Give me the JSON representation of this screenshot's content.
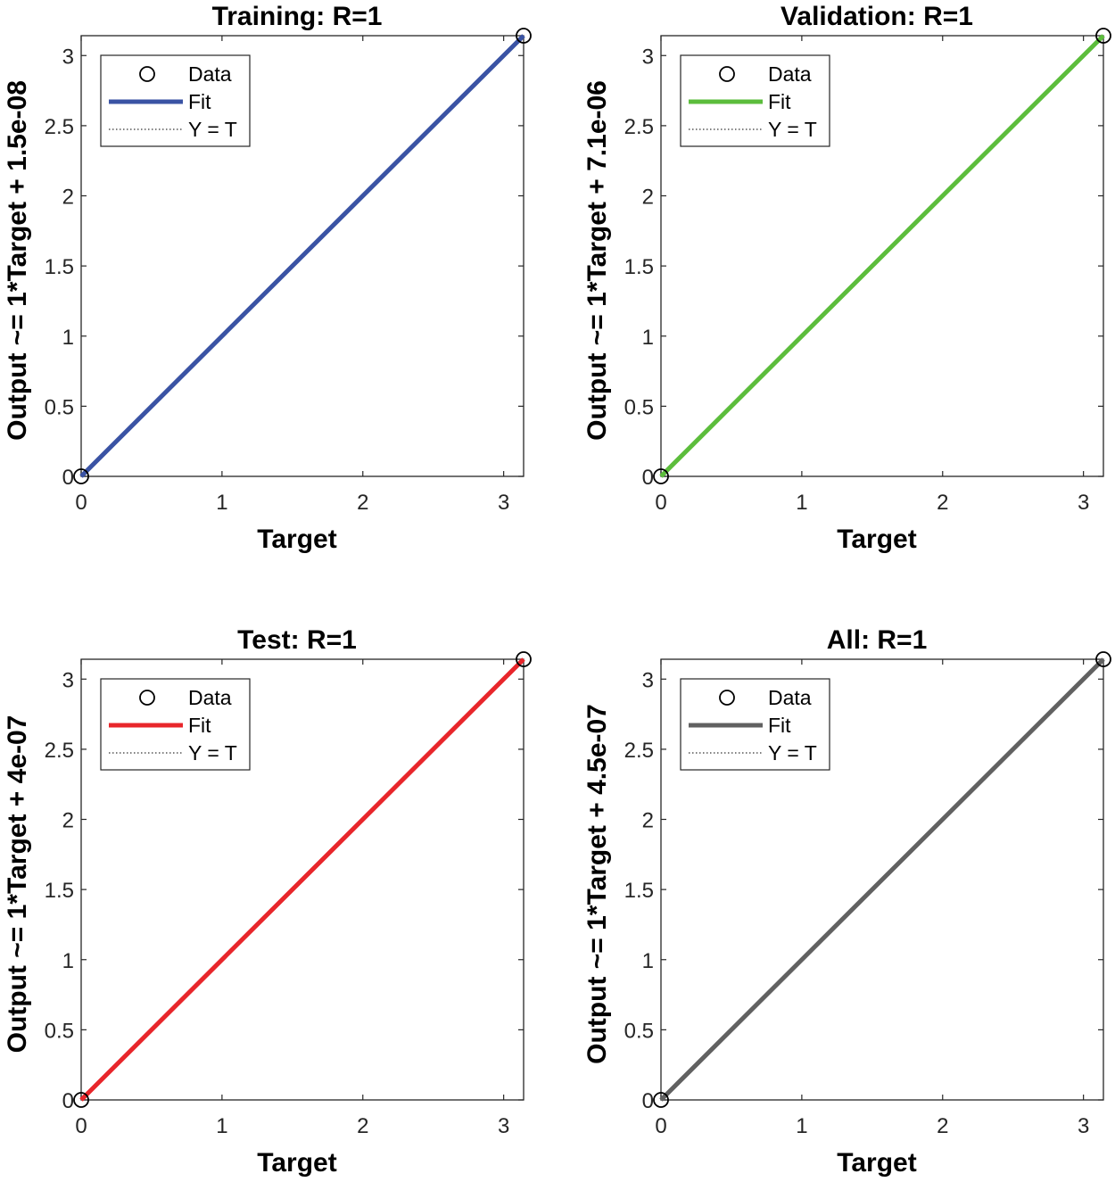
{
  "chart_data": [
    {
      "type": "scatter",
      "title": "Training: R=1",
      "xlabel": "Target",
      "ylabel": "Output ~= 1*Target + 1.5e-08",
      "xlim": [
        0,
        3.14159
      ],
      "ylim": [
        0,
        3.14159
      ],
      "xticks": [
        "0",
        "1",
        "2",
        "3"
      ],
      "yticks": [
        "0",
        "0.5",
        "1",
        "1.5",
        "2",
        "2.5",
        "3"
      ],
      "fit_color": "#3a53a4",
      "legend_position": "top-left",
      "legend": [
        "Data",
        "Fit",
        "Y = T"
      ],
      "series": [
        {
          "name": "Data",
          "x": [
            0,
            3.14159
          ],
          "y": [
            0,
            3.14159
          ]
        },
        {
          "name": "Fit",
          "x": [
            0,
            3.14159
          ],
          "y": [
            0,
            3.14159
          ]
        },
        {
          "name": "Y = T",
          "x": [
            0,
            3.14159
          ],
          "y": [
            0,
            3.14159
          ]
        }
      ]
    },
    {
      "type": "scatter",
      "title": "Validation: R=1",
      "xlabel": "Target",
      "ylabel": "Output ~= 1*Target + 7.1e-06",
      "xlim": [
        0,
        3.14159
      ],
      "ylim": [
        0,
        3.14159
      ],
      "xticks": [
        "0",
        "1",
        "2",
        "3"
      ],
      "yticks": [
        "0",
        "0.5",
        "1",
        "1.5",
        "2",
        "2.5",
        "3"
      ],
      "fit_color": "#5cbd3c",
      "legend_position": "top-left",
      "legend": [
        "Data",
        "Fit",
        "Y = T"
      ],
      "series": [
        {
          "name": "Data",
          "x": [
            0,
            3.14159
          ],
          "y": [
            0,
            3.14159
          ]
        },
        {
          "name": "Fit",
          "x": [
            0,
            3.14159
          ],
          "y": [
            0,
            3.14159
          ]
        },
        {
          "name": "Y = T",
          "x": [
            0,
            3.14159
          ],
          "y": [
            0,
            3.14159
          ]
        }
      ]
    },
    {
      "type": "scatter",
      "title": "Test: R=1",
      "xlabel": "Target",
      "ylabel": "Output ~= 1*Target + 4e-07",
      "xlim": [
        0,
        3.14159
      ],
      "ylim": [
        0,
        3.14159
      ],
      "xticks": [
        "0",
        "1",
        "2",
        "3"
      ],
      "yticks": [
        "0",
        "0.5",
        "1",
        "1.5",
        "2",
        "2.5",
        "3"
      ],
      "fit_color": "#e8262b",
      "legend_position": "top-left",
      "legend": [
        "Data",
        "Fit",
        "Y = T"
      ],
      "series": [
        {
          "name": "Data",
          "x": [
            0,
            3.14159
          ],
          "y": [
            0,
            3.14159
          ]
        },
        {
          "name": "Fit",
          "x": [
            0,
            3.14159
          ],
          "y": [
            0,
            3.14159
          ]
        },
        {
          "name": "Y = T",
          "x": [
            0,
            3.14159
          ],
          "y": [
            0,
            3.14159
          ]
        }
      ]
    },
    {
      "type": "scatter",
      "title": "All: R=1",
      "xlabel": "Target",
      "ylabel": "Output ~= 1*Target + 4.5e-07",
      "xlim": [
        0,
        3.14159
      ],
      "ylim": [
        0,
        3.14159
      ],
      "xticks": [
        "0",
        "1",
        "2",
        "3"
      ],
      "yticks": [
        "0",
        "0.5",
        "1",
        "1.5",
        "2",
        "2.5",
        "3"
      ],
      "fit_color": "#616161",
      "legend_position": "top-left",
      "legend": [
        "Data",
        "Fit",
        "Y = T"
      ],
      "series": [
        {
          "name": "Data",
          "x": [
            0,
            3.14159
          ],
          "y": [
            0,
            3.14159
          ]
        },
        {
          "name": "Fit",
          "x": [
            0,
            3.14159
          ],
          "y": [
            0,
            3.14159
          ]
        },
        {
          "name": "Y = T",
          "x": [
            0,
            3.14159
          ],
          "y": [
            0,
            3.14159
          ]
        }
      ]
    }
  ]
}
